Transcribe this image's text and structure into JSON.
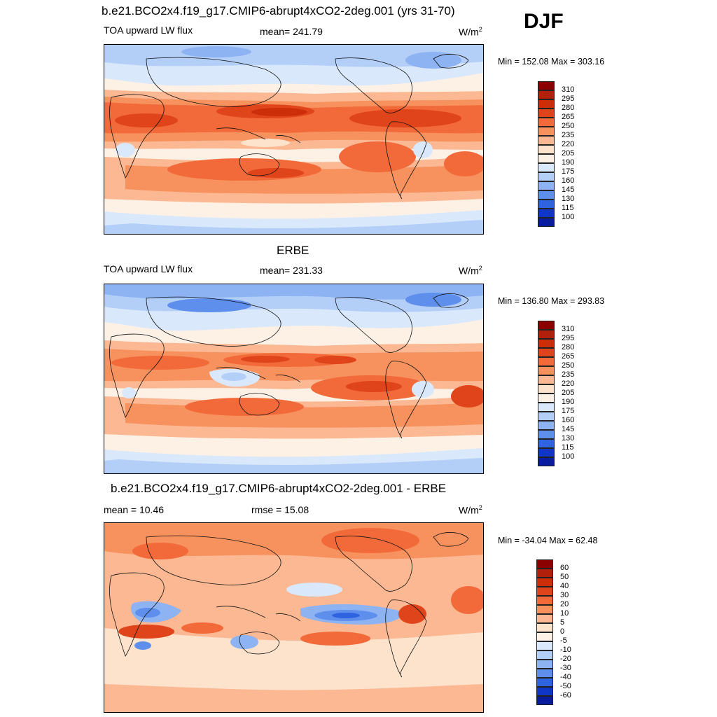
{
  "season": "DJF",
  "units_text": "W/m",
  "units_sup": "2",
  "panels": [
    {
      "title": "b.e21.BCO2x4.f19_g17.CMIP6-abrupt4xCO2-2deg.001 (yrs 31-70)",
      "left_label": "TOA upward LW flux",
      "center_label": "mean= 241.79",
      "minmax": "Min = 152.08 Max = 303.16"
    },
    {
      "title": "ERBE",
      "left_label": "TOA upward LW flux",
      "center_label": "mean= 231.33",
      "minmax": "Min = 136.80 Max = 293.83"
    },
    {
      "title": "b.e21.BCO2x4.f19_g17.CMIP6-abrupt4xCO2-2deg.001 - ERBE",
      "left_label": "mean =  10.46",
      "center_label": "rmse =  15.08",
      "minmax": "Min = -34.04 Max =  62.48"
    }
  ],
  "colorbar_abs": {
    "levels": [
      "310",
      "295",
      "280",
      "265",
      "250",
      "235",
      "220",
      "205",
      "190",
      "175",
      "160",
      "145",
      "130",
      "115",
      "100"
    ],
    "colors": [
      "#8b0000",
      "#b0200a",
      "#cc2e0a",
      "#e0441a",
      "#f26a3a",
      "#f7915e",
      "#fbb893",
      "#fde2cc",
      "#fdf1e6",
      "#d9e8fb",
      "#b3cff7",
      "#8db3f2",
      "#5f8fec",
      "#2f63e0",
      "#1036c8",
      "#0a1c9e",
      "#030a78"
    ]
  },
  "colorbar_diff": {
    "levels": [
      "60",
      "50",
      "40",
      "30",
      "20",
      "10",
      "5",
      "0",
      "-5",
      "-10",
      "-20",
      "-30",
      "-40",
      "-50",
      "-60"
    ],
    "colors": [
      "#8b0000",
      "#b0200a",
      "#cc2e0a",
      "#e0441a",
      "#f26a3a",
      "#f7915e",
      "#fbb893",
      "#fde2cc",
      "#fdf1e6",
      "#d9e8fb",
      "#b3cff7",
      "#8db3f2",
      "#5f8fec",
      "#2f63e0",
      "#1036c8",
      "#0a1c9e",
      "#030a78"
    ]
  }
}
